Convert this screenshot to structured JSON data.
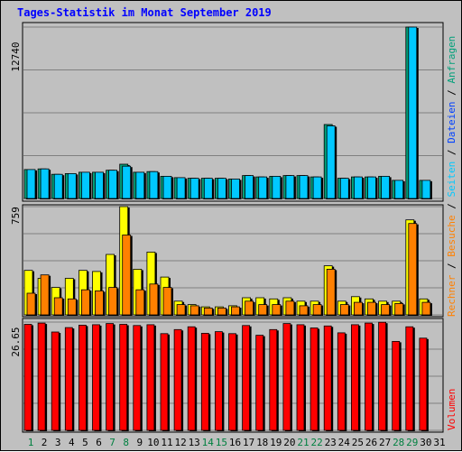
{
  "title": "Tages-Statistik im Monat September 2019",
  "chart_data": [
    {
      "type": "bar",
      "panel": "top",
      "ytick_label": "12740",
      "ymax": 12740,
      "categories": [
        "1",
        "2",
        "3",
        "4",
        "5",
        "6",
        "7",
        "8",
        "9",
        "10",
        "11",
        "12",
        "13",
        "14",
        "15",
        "16",
        "17",
        "18",
        "19",
        "20",
        "21",
        "22",
        "23",
        "24",
        "25",
        "26",
        "27",
        "28",
        "29",
        "30",
        "31"
      ],
      "series": [
        {
          "name": "Anfragen",
          "color": "#00a07a",
          "values": [
            2150,
            2200,
            1800,
            1850,
            1950,
            1950,
            2100,
            2550,
            1950,
            2000,
            1650,
            1550,
            1500,
            1500,
            1500,
            1450,
            1700,
            1600,
            1650,
            1700,
            1700,
            1600,
            5500,
            1500,
            1600,
            1600,
            1650,
            1350,
            12740,
            1350,
            0
          ]
        },
        {
          "name": "Dateien",
          "color": "#00c8ff",
          "values": [
            2150,
            2200,
            1800,
            1850,
            1950,
            1950,
            2100,
            2400,
            1950,
            2000,
            1650,
            1550,
            1500,
            1500,
            1500,
            1450,
            1700,
            1600,
            1650,
            1700,
            1700,
            1600,
            5400,
            1500,
            1600,
            1600,
            1650,
            1350,
            12740,
            1350,
            0
          ]
        }
      ]
    },
    {
      "type": "bar",
      "panel": "middle",
      "ytick_label": "759",
      "ymax": 759,
      "categories": [
        "1",
        "2",
        "3",
        "4",
        "5",
        "6",
        "7",
        "8",
        "9",
        "10",
        "11",
        "12",
        "13",
        "14",
        "15",
        "16",
        "17",
        "18",
        "19",
        "20",
        "21",
        "22",
        "23",
        "24",
        "25",
        "26",
        "27",
        "28",
        "29",
        "30",
        "31"
      ],
      "series": [
        {
          "name": "Seiten",
          "color": "#ffff00",
          "values": [
            312,
            256,
            192,
            256,
            312,
            304,
            424,
            759,
            320,
            440,
            265,
            96,
            72,
            56,
            56,
            64,
            120,
            120,
            112,
            120,
            96,
            96,
            344,
            96,
            128,
            112,
            96,
            96,
            666,
            112,
            0
          ]
        },
        {
          "name": "Besuche",
          "color": "#ff8000",
          "values": [
            152,
            280,
            120,
            112,
            176,
            168,
            192,
            560,
            176,
            216,
            192,
            72,
            64,
            48,
            48,
            56,
            96,
            72,
            72,
            96,
            64,
            72,
            320,
            72,
            88,
            88,
            72,
            80,
            641,
            88,
            0
          ]
        }
      ]
    },
    {
      "type": "bar",
      "panel": "bottom",
      "ytick_label": "26.65",
      "ymax": 26.65,
      "categories": [
        "1",
        "2",
        "3",
        "4",
        "5",
        "6",
        "7",
        "8",
        "9",
        "10",
        "11",
        "12",
        "13",
        "14",
        "15",
        "16",
        "17",
        "18",
        "19",
        "20",
        "21",
        "22",
        "23",
        "24",
        "25",
        "26",
        "27",
        "28",
        "29",
        "30",
        "31"
      ],
      "series": [
        {
          "name": "Volumen",
          "color": "#ff0000",
          "values": [
            26.1,
            26.4,
            24.2,
            25.3,
            25.9,
            26.0,
            26.3,
            26.1,
            25.8,
            26.0,
            23.8,
            24.8,
            25.5,
            23.9,
            24.3,
            23.8,
            25.8,
            23.4,
            24.8,
            26.3,
            26.0,
            25.2,
            25.7,
            24.0,
            26.0,
            26.4,
            26.6,
            21.9,
            25.5,
            22.7,
            0
          ]
        }
      ]
    }
  ],
  "xlabels": [
    {
      "label": "1",
      "color": "#008040"
    },
    {
      "label": "2",
      "color": "#000000"
    },
    {
      "label": "3",
      "color": "#000000"
    },
    {
      "label": "4",
      "color": "#000000"
    },
    {
      "label": "5",
      "color": "#000000"
    },
    {
      "label": "6",
      "color": "#000000"
    },
    {
      "label": "7",
      "color": "#008040"
    },
    {
      "label": "8",
      "color": "#008040"
    },
    {
      "label": "9",
      "color": "#000000"
    },
    {
      "label": "10",
      "color": "#000000"
    },
    {
      "label": "11",
      "color": "#000000"
    },
    {
      "label": "12",
      "color": "#000000"
    },
    {
      "label": "13",
      "color": "#000000"
    },
    {
      "label": "14",
      "color": "#008040"
    },
    {
      "label": "15",
      "color": "#008040"
    },
    {
      "label": "16",
      "color": "#000000"
    },
    {
      "label": "17",
      "color": "#000000"
    },
    {
      "label": "18",
      "color": "#000000"
    },
    {
      "label": "19",
      "color": "#000000"
    },
    {
      "label": "20",
      "color": "#000000"
    },
    {
      "label": "21",
      "color": "#008040"
    },
    {
      "label": "22",
      "color": "#008040"
    },
    {
      "label": "23",
      "color": "#000000"
    },
    {
      "label": "24",
      "color": "#000000"
    },
    {
      "label": "25",
      "color": "#000000"
    },
    {
      "label": "26",
      "color": "#000000"
    },
    {
      "label": "27",
      "color": "#000000"
    },
    {
      "label": "28",
      "color": "#008040"
    },
    {
      "label": "29",
      "color": "#008040"
    },
    {
      "label": "30",
      "color": "#000000"
    },
    {
      "label": "31",
      "color": "#000000"
    }
  ],
  "legend": [
    {
      "parts": [
        {
          "text": "Volumen",
          "color": "#ff0000"
        }
      ]
    },
    {
      "parts": [
        {
          "text": "Rechner",
          "color": "#ff8000"
        },
        {
          "text": " / ",
          "color": "#000000"
        },
        {
          "text": "Besuche",
          "color": "#ff8000"
        },
        {
          "text": " / ",
          "color": "#000000"
        },
        {
          "text": "Seiten",
          "color": "#00c8ff"
        },
        {
          "text": " / ",
          "color": "#000000"
        },
        {
          "text": "Dateien",
          "color": "#0040ff"
        },
        {
          "text": " / ",
          "color": "#000000"
        },
        {
          "text": "Anfragen",
          "color": "#00a07a"
        }
      ]
    }
  ],
  "legend_strings": {
    "volumen": "Volumen",
    "rechner": "Rechner",
    "besuche": "Besuche",
    "seiten": "Seiten",
    "dateien": "Dateien",
    "anfragen": "Anfragen",
    "sep": " / "
  },
  "colors": {
    "background": "#c0c0c0",
    "gridline": "#808080",
    "title": "#0000ff",
    "weekend": "#008040"
  }
}
